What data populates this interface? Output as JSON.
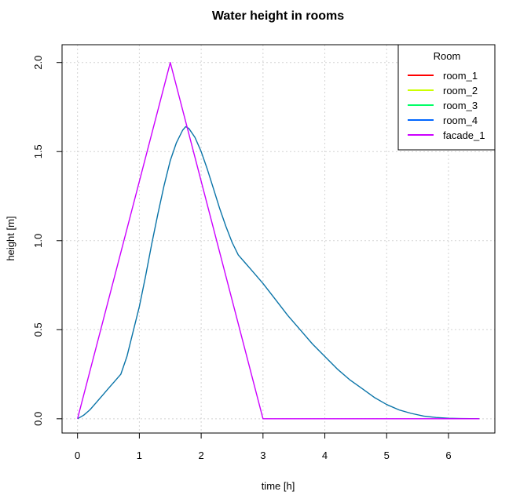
{
  "chart_data": {
    "type": "line",
    "title": "Water height in rooms",
    "xlabel": "time [h]",
    "ylabel": "height [m]",
    "xlim": [
      -0.25,
      6.75
    ],
    "ylim": [
      -0.08,
      2.1
    ],
    "grid": true,
    "x_ticks": [
      0,
      1,
      2,
      3,
      4,
      5,
      6
    ],
    "y_ticks": [
      0.0,
      0.5,
      1.0,
      1.5,
      2.0
    ],
    "x_tick_labels": [
      "0",
      "1",
      "2",
      "3",
      "4",
      "5",
      "6"
    ],
    "y_tick_labels": [
      "0.0",
      "0.5",
      "1.0",
      "1.5",
      "2.0"
    ],
    "legend": {
      "title": "Room",
      "position": "top-right",
      "entries": [
        {
          "name": "room_1",
          "color": "#ff0000"
        },
        {
          "name": "room_2",
          "color": "#ccff00"
        },
        {
          "name": "room_3",
          "color": "#00ff66"
        },
        {
          "name": "room_4",
          "color": "#0066ff"
        },
        {
          "name": "facade_1",
          "color": "#cc00ff"
        }
      ]
    },
    "series": [
      {
        "name": "room_4",
        "color": "#0a74a8",
        "x": [
          0,
          0.1,
          0.2,
          0.3,
          0.4,
          0.5,
          0.6,
          0.7,
          0.8,
          0.9,
          1.0,
          1.1,
          1.2,
          1.3,
          1.4,
          1.5,
          1.6,
          1.7,
          1.75,
          1.8,
          1.9,
          2.0,
          2.1,
          2.2,
          2.3,
          2.4,
          2.5,
          2.6,
          2.7,
          2.8,
          3.0,
          3.2,
          3.4,
          3.6,
          3.8,
          4.0,
          4.2,
          4.4,
          4.6,
          4.8,
          5.0,
          5.2,
          5.4,
          5.6,
          5.8,
          6.0,
          6.2,
          6.5
        ],
        "y": [
          0.0,
          0.02,
          0.05,
          0.09,
          0.13,
          0.17,
          0.21,
          0.25,
          0.35,
          0.49,
          0.63,
          0.8,
          0.98,
          1.15,
          1.31,
          1.45,
          1.55,
          1.62,
          1.64,
          1.63,
          1.58,
          1.5,
          1.4,
          1.29,
          1.18,
          1.08,
          0.99,
          0.92,
          0.88,
          0.84,
          0.76,
          0.67,
          0.58,
          0.5,
          0.42,
          0.35,
          0.28,
          0.22,
          0.17,
          0.12,
          0.08,
          0.05,
          0.03,
          0.015,
          0.007,
          0.003,
          0.001,
          0.0
        ]
      },
      {
        "name": "facade_1",
        "color": "#cc00ff",
        "x": [
          0,
          1.5,
          3.0,
          6.5
        ],
        "y": [
          0.0,
          2.0,
          0.0,
          0.0
        ]
      }
    ]
  }
}
